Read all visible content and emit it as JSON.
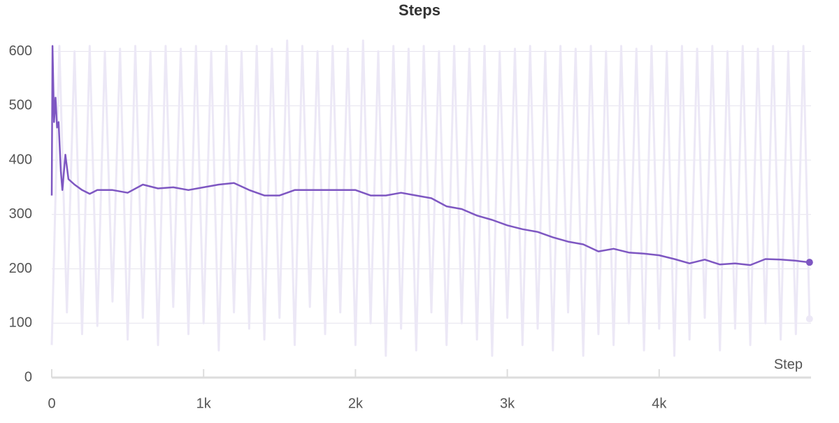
{
  "chart_data": {
    "type": "line",
    "title": "Steps",
    "x_label": "Step",
    "xlim": [
      0,
      5000
    ],
    "ylim": [
      0,
      620
    ],
    "xticks": [
      0,
      {
        "value": 1000,
        "label": "1k"
      },
      {
        "value": 2000,
        "label": "2k"
      },
      {
        "value": 3000,
        "label": "3k"
      },
      {
        "value": 4000,
        "label": "4k"
      }
    ],
    "yticks": [
      0,
      100,
      200,
      300,
      400,
      500,
      600
    ],
    "grid": true,
    "series": [
      {
        "color": "#ece8f6",
        "x": [
          0,
          50,
          100,
          150,
          200,
          250,
          300,
          350,
          400,
          450,
          500,
          550,
          600,
          650,
          700,
          750,
          800,
          850,
          900,
          950,
          1000,
          1050,
          1100,
          1150,
          1200,
          1250,
          1300,
          1350,
          1400,
          1450,
          1500,
          1550,
          1600,
          1650,
          1700,
          1750,
          1800,
          1850,
          1900,
          1950,
          2000,
          2050,
          2100,
          2150,
          2200,
          2250,
          2300,
          2350,
          2400,
          2450,
          2500,
          2550,
          2600,
          2650,
          2700,
          2750,
          2800,
          2850,
          2900,
          2950,
          3000,
          3050,
          3100,
          3150,
          3200,
          3250,
          3300,
          3350,
          3400,
          3450,
          3500,
          3550,
          3600,
          3650,
          3700,
          3750,
          3800,
          3850,
          3900,
          3950,
          4000,
          4050,
          4100,
          4150,
          4200,
          4250,
          4300,
          4350,
          4400,
          4450,
          4500,
          4550,
          4600,
          4650,
          4700,
          4750,
          4800,
          4850,
          4900,
          4950,
          4990
        ],
        "values": [
          60,
          610,
          120,
          600,
          80,
          610,
          95,
          600,
          140,
          605,
          70,
          610,
          110,
          600,
          60,
          610,
          130,
          605,
          80,
          610,
          100,
          600,
          50,
          610,
          120,
          600,
          90,
          610,
          70,
          605,
          110,
          620,
          60,
          610,
          130,
          600,
          80,
          610,
          120,
          605,
          60,
          620,
          100,
          600,
          40,
          610,
          90,
          605,
          50,
          610,
          120,
          600,
          60,
          610,
          100,
          605,
          70,
          610,
          40,
          600,
          110,
          605,
          60,
          610,
          90,
          600,
          50,
          610,
          120,
          605,
          40,
          610,
          80,
          600,
          60,
          610,
          100,
          605,
          50,
          610,
          90,
          600,
          40,
          610,
          70,
          605,
          110,
          610,
          50,
          600,
          90,
          610,
          60,
          605,
          100,
          610,
          70,
          600,
          80,
          610,
          108
        ]
      },
      {
        "color": "#7e57c2",
        "x": [
          0,
          5,
          15,
          25,
          35,
          45,
          60,
          70,
          90,
          110,
          150,
          200,
          250,
          300,
          400,
          500,
          600,
          700,
          800,
          900,
          1000,
          1100,
          1200,
          1300,
          1400,
          1500,
          1600,
          1700,
          1800,
          1900,
          2000,
          2100,
          2200,
          2300,
          2400,
          2500,
          2600,
          2700,
          2800,
          2900,
          3000,
          3100,
          3200,
          3300,
          3400,
          3500,
          3600,
          3700,
          3800,
          3900,
          4000,
          4100,
          4200,
          4300,
          4400,
          4500,
          4600,
          4700,
          4800,
          4900,
          4990
        ],
        "values": [
          335,
          610,
          470,
          515,
          460,
          470,
          380,
          345,
          410,
          365,
          355,
          345,
          338,
          345,
          345,
          340,
          355,
          348,
          350,
          345,
          350,
          355,
          358,
          345,
          335,
          335,
          345,
          345,
          345,
          345,
          345,
          335,
          335,
          340,
          335,
          330,
          315,
          310,
          298,
          290,
          280,
          273,
          268,
          258,
          250,
          245,
          232,
          237,
          230,
          228,
          225,
          218,
          210,
          217,
          208,
          210,
          207,
          218,
          217,
          215,
          212
        ]
      }
    ]
  }
}
